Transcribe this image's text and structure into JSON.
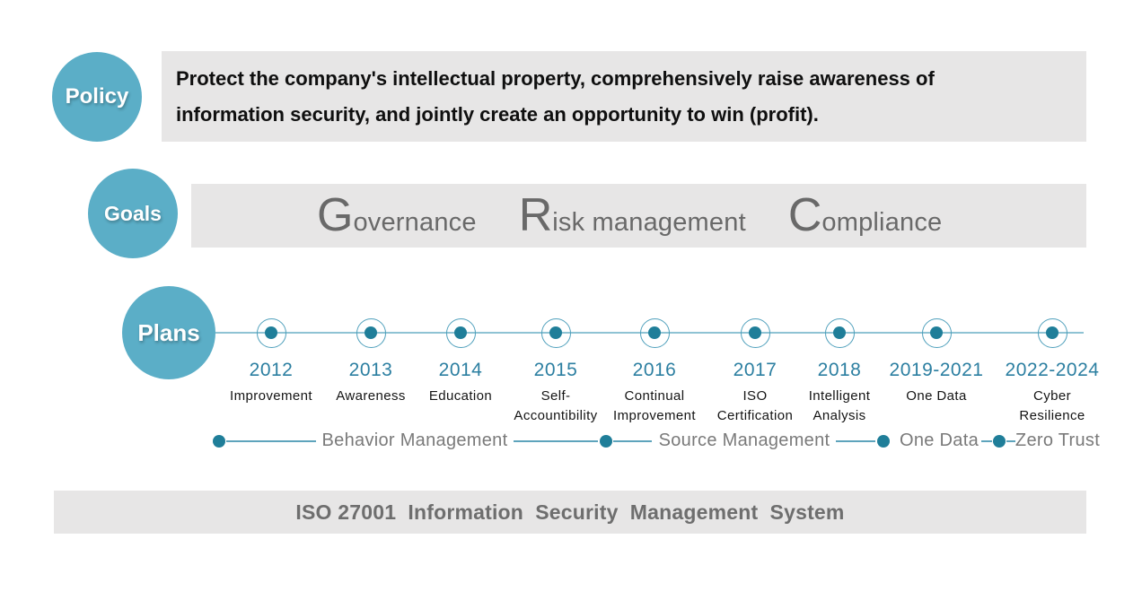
{
  "policy": {
    "label": "Policy",
    "lines": [
      "Protect the company's intellectual property, comprehensively raise awareness of",
      "information security, and jointly create an opportunity to win (profit)."
    ]
  },
  "goals": {
    "label": "Goals",
    "items": [
      {
        "initial": "G",
        "rest": "overnance"
      },
      {
        "initial": "R",
        "rest": "isk management"
      },
      {
        "initial": "C",
        "rest": "ompliance"
      }
    ]
  },
  "plans": {
    "label": "Plans",
    "milestones": [
      {
        "year": "2012",
        "label": "Improvement"
      },
      {
        "year": "2013",
        "label": "Awareness"
      },
      {
        "year": "2014",
        "label": "Education"
      },
      {
        "year": "2015",
        "label": "Self-\nAccountibility"
      },
      {
        "year": "2016",
        "label": "Continual\nImprovement"
      },
      {
        "year": "2017",
        "label": "ISO\nCertification"
      },
      {
        "year": "2018",
        "label": "Intelligent\nAnalysis"
      },
      {
        "year": "2019-2021",
        "label": "One Data"
      },
      {
        "year": "2022-2024",
        "label": "Cyber\nResilience"
      }
    ],
    "track_labels": [
      "Behavior Management",
      "Source Management",
      "One Data",
      "Zero Trust"
    ]
  },
  "footer": {
    "text": "ISO 27001  Information  Security  Management  System"
  },
  "colors": {
    "accent_circle": "#5BAEC7",
    "bar_background": "#E7E6E6",
    "timeline_line": "#8FC3D4",
    "node_dot": "#1F7E99",
    "year_text": "#2C7FA1",
    "gray_text": "#696969"
  }
}
